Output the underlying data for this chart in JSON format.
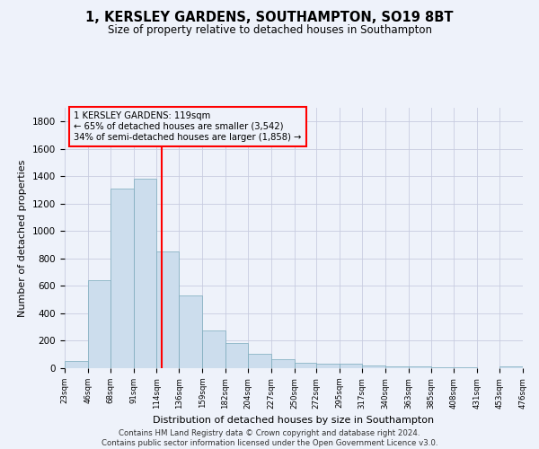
{
  "title": "1, KERSLEY GARDENS, SOUTHAMPTON, SO19 8BT",
  "subtitle": "Size of property relative to detached houses in Southampton",
  "xlabel": "Distribution of detached houses by size in Southampton",
  "ylabel": "Number of detached properties",
  "bar_color": "#ccdded",
  "bar_edge_color": "#7aaabb",
  "background_color": "#eef2fa",
  "grid_color": "#c8cce0",
  "vline_x": 119,
  "vline_color": "red",
  "annotation_line1": "1 KERSLEY GARDENS: 119sqm",
  "annotation_line2": "← 65% of detached houses are smaller (3,542)",
  "annotation_line3": "34% of semi-detached houses are larger (1,858) →",
  "annotation_box_color": "red",
  "footer_text": "Contains HM Land Registry data © Crown copyright and database right 2024.\nContains public sector information licensed under the Open Government Licence v3.0.",
  "bin_edges": [
    23,
    46,
    68,
    91,
    114,
    136,
    159,
    182,
    204,
    227,
    250,
    272,
    295,
    317,
    340,
    363,
    385,
    408,
    431,
    453,
    476
  ],
  "bar_heights": [
    50,
    640,
    1310,
    1380,
    850,
    530,
    275,
    185,
    105,
    65,
    40,
    35,
    30,
    20,
    15,
    10,
    8,
    5,
    3,
    12
  ],
  "ylim": [
    0,
    1900
  ],
  "yticks": [
    0,
    200,
    400,
    600,
    800,
    1000,
    1200,
    1400,
    1600,
    1800
  ]
}
